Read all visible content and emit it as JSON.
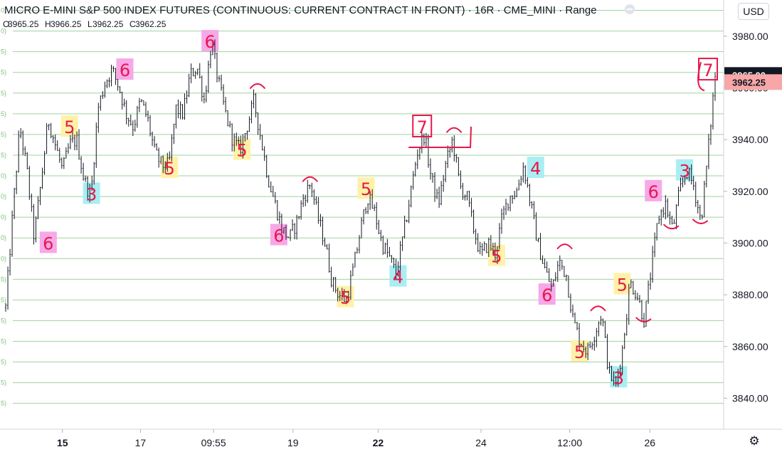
{
  "header": {
    "title": "MICRO E-MINI S&P 500 INDEX FUTURES (CONTINUOUS: CURRENT CONTRACT IN FRONT) · 16R · CME_MINI · Range",
    "ohlc": [
      {
        "key": "O",
        "value": "3965.25"
      },
      {
        "key": "H",
        "value": "3966.25"
      },
      {
        "key": "L",
        "value": "3962.25"
      },
      {
        "key": "C",
        "value": "3962.25"
      }
    ]
  },
  "currency_button": "USD",
  "colors": {
    "grid": "#9fd39f",
    "price_badge": "#131722",
    "close_badge": "#f7a7a7",
    "ink": "#e8174c",
    "pink": "#f7a8e8",
    "yellow": "#fff2a8",
    "cyan": "#a8eef2"
  },
  "chart_data": {
    "type": "line",
    "title": "MICRO E-MINI S&P 500 INDEX FUTURES (CONTINUOUS: CURRENT CONTRACT IN FRONT) · 16R · CME_MINI · Range",
    "xlabel": "",
    "ylabel": "",
    "ylim": [
      3828,
      3994
    ],
    "y_ticks": [
      "3980.00",
      "3960.00",
      "3940.00",
      "3920.00",
      "3900.00",
      "3880.00",
      "3860.00",
      "3840.00"
    ],
    "y_tick_values": [
      3980,
      3960,
      3940,
      3920,
      3900,
      3880,
      3860,
      3840
    ],
    "x_ticks": [
      {
        "label": "15",
        "pos": 0.08,
        "bold": true
      },
      {
        "label": "17",
        "pos": 0.19,
        "bold": false
      },
      {
        "label": "09:55",
        "pos": 0.293,
        "bold": false
      },
      {
        "label": "19",
        "pos": 0.405,
        "bold": false
      },
      {
        "label": "22",
        "pos": 0.525,
        "bold": true
      },
      {
        "label": "24",
        "pos": 0.67,
        "bold": false
      },
      {
        "label": "12:00",
        "pos": 0.795,
        "bold": false
      },
      {
        "label": "26",
        "pos": 0.908,
        "bold": false
      }
    ],
    "level_lines": [
      3990,
      3982,
      3974,
      3966,
      3958,
      3950,
      3942,
      3934,
      3926,
      3918,
      3910,
      3902,
      3894,
      3886,
      3878,
      3870,
      3862,
      3854,
      3846,
      3838
    ],
    "level_labels": [
      "0)",
      "0)",
      "5)",
      "5)",
      "5)",
      "5)",
      "5)",
      "5)",
      "0)",
      "0)",
      "0)",
      "0)",
      "0)",
      "5)",
      "5)",
      "5)",
      "5)",
      "5)",
      "5)",
      "5)"
    ],
    "series": [
      {
        "values": [
          [
            0.0,
            3875
          ],
          [
            0.01,
            3912
          ],
          [
            0.02,
            3945
          ],
          [
            0.03,
            3928
          ],
          [
            0.04,
            3902
          ],
          [
            0.05,
            3924
          ],
          [
            0.06,
            3948
          ],
          [
            0.07,
            3938
          ],
          [
            0.08,
            3928
          ],
          [
            0.09,
            3938
          ],
          [
            0.1,
            3940
          ],
          [
            0.11,
            3925
          ],
          [
            0.12,
            3918
          ],
          [
            0.13,
            3952
          ],
          [
            0.14,
            3962
          ],
          [
            0.15,
            3967
          ],
          [
            0.16,
            3960
          ],
          [
            0.17,
            3950
          ],
          [
            0.18,
            3945
          ],
          [
            0.19,
            3955
          ],
          [
            0.2,
            3948
          ],
          [
            0.21,
            3935
          ],
          [
            0.22,
            3930
          ],
          [
            0.23,
            3930
          ],
          [
            0.24,
            3952
          ],
          [
            0.25,
            3950
          ],
          [
            0.26,
            3965
          ],
          [
            0.27,
            3968
          ],
          [
            0.28,
            3955
          ],
          [
            0.29,
            3978
          ],
          [
            0.3,
            3962
          ],
          [
            0.31,
            3950
          ],
          [
            0.32,
            3940
          ],
          [
            0.33,
            3936
          ],
          [
            0.34,
            3945
          ],
          [
            0.35,
            3955
          ],
          [
            0.36,
            3940
          ],
          [
            0.37,
            3925
          ],
          [
            0.38,
            3915
          ],
          [
            0.39,
            3905
          ],
          [
            0.4,
            3902
          ],
          [
            0.41,
            3908
          ],
          [
            0.42,
            3918
          ],
          [
            0.43,
            3923
          ],
          [
            0.44,
            3910
          ],
          [
            0.45,
            3900
          ],
          [
            0.46,
            3885
          ],
          [
            0.47,
            3880
          ],
          [
            0.48,
            3878
          ],
          [
            0.49,
            3890
          ],
          [
            0.5,
            3905
          ],
          [
            0.51,
            3918
          ],
          [
            0.52,
            3912
          ],
          [
            0.53,
            3900
          ],
          [
            0.54,
            3895
          ],
          [
            0.55,
            3888
          ],
          [
            0.56,
            3902
          ],
          [
            0.57,
            3918
          ],
          [
            0.58,
            3935
          ],
          [
            0.59,
            3942
          ],
          [
            0.6,
            3925
          ],
          [
            0.61,
            3915
          ],
          [
            0.62,
            3930
          ],
          [
            0.63,
            3940
          ],
          [
            0.64,
            3922
          ],
          [
            0.65,
            3918
          ],
          [
            0.66,
            3905
          ],
          [
            0.67,
            3895
          ],
          [
            0.68,
            3900
          ],
          [
            0.69,
            3896
          ],
          [
            0.7,
            3910
          ],
          [
            0.71,
            3918
          ],
          [
            0.72,
            3920
          ],
          [
            0.73,
            3930
          ],
          [
            0.74,
            3915
          ],
          [
            0.75,
            3900
          ],
          [
            0.76,
            3890
          ],
          [
            0.77,
            3882
          ],
          [
            0.78,
            3893
          ],
          [
            0.79,
            3888
          ],
          [
            0.8,
            3870
          ],
          [
            0.81,
            3862
          ],
          [
            0.82,
            3858
          ],
          [
            0.83,
            3865
          ],
          [
            0.84,
            3873
          ],
          [
            0.85,
            3850
          ],
          [
            0.86,
            3845
          ],
          [
            0.87,
            3860
          ],
          [
            0.88,
            3885
          ],
          [
            0.89,
            3880
          ],
          [
            0.9,
            3870
          ],
          [
            0.91,
            3890
          ],
          [
            0.92,
            3910
          ],
          [
            0.93,
            3915
          ],
          [
            0.94,
            3905
          ],
          [
            0.95,
            3920
          ],
          [
            0.96,
            3928
          ],
          [
            0.97,
            3922
          ],
          [
            0.98,
            3908
          ],
          [
            0.99,
            3935
          ],
          [
            1.0,
            3965
          ]
        ]
      }
    ]
  },
  "price_badges": [
    {
      "value": 3965.0,
      "label": "3965.00",
      "kind": "last"
    },
    {
      "value": 3962.25,
      "label": "3962.25",
      "kind": "close"
    }
  ],
  "annotations": [
    {
      "text": "6",
      "x": 0.06,
      "y": 3900,
      "bg": "pink"
    },
    {
      "text": "5",
      "x": 0.09,
      "y": 3945,
      "bg": "yellow"
    },
    {
      "text": "3",
      "x": 0.121,
      "y": 3919,
      "bg": "cyan"
    },
    {
      "text": "6",
      "x": 0.168,
      "y": 3967,
      "bg": "pink"
    },
    {
      "text": "5",
      "x": 0.231,
      "y": 3929,
      "bg": "yellow"
    },
    {
      "text": "6",
      "x": 0.288,
      "y": 3978,
      "bg": "pink"
    },
    {
      "text": "5",
      "x": 0.333,
      "y": 3936,
      "bg": "yellow"
    },
    {
      "text": "6",
      "x": 0.385,
      "y": 3903,
      "bg": "pink"
    },
    {
      "text": "5",
      "x": 0.479,
      "y": 3879,
      "bg": "yellow"
    },
    {
      "text": "5",
      "x": 0.508,
      "y": 3921,
      "bg": "yellow"
    },
    {
      "text": "4",
      "x": 0.553,
      "y": 3887,
      "bg": "cyan"
    },
    {
      "text": "5",
      "x": 0.692,
      "y": 3895,
      "bg": "yellow"
    },
    {
      "text": "4",
      "x": 0.747,
      "y": 3929,
      "bg": "cyan"
    },
    {
      "text": "6",
      "x": 0.763,
      "y": 3880,
      "bg": "pink"
    },
    {
      "text": "5",
      "x": 0.809,
      "y": 3858,
      "bg": "yellow"
    },
    {
      "text": "3",
      "x": 0.864,
      "y": 3848,
      "bg": "cyan"
    },
    {
      "text": "5",
      "x": 0.869,
      "y": 3884,
      "bg": "yellow"
    },
    {
      "text": "6",
      "x": 0.913,
      "y": 3920,
      "bg": "pink"
    },
    {
      "text": "3",
      "x": 0.957,
      "y": 3928,
      "bg": "cyan"
    },
    {
      "text": "7",
      "x": 0.587,
      "y": 3945,
      "bg": "box"
    },
    {
      "text": "7",
      "x": 0.99,
      "y": 3967,
      "bg": "box"
    }
  ]
}
